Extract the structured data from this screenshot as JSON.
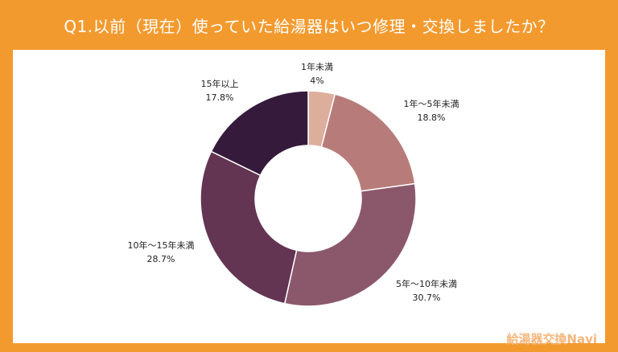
{
  "header": {
    "title": "Q1.以前（現在）使っていた給湯器はいつ修理・交換しましたか？"
  },
  "brand": {
    "text": "給湯器交換Navi"
  },
  "chart_data": {
    "type": "pie",
    "donut": true,
    "categories": [
      "1年未満",
      "1年〜5年未満",
      "5年〜10年未満",
      "10年〜15年未満",
      "15年以上"
    ],
    "values": [
      4,
      18.8,
      30.7,
      28.7,
      17.8
    ],
    "value_labels": [
      "4%",
      "18.8%",
      "30.7%",
      "28.7%",
      "17.8%"
    ],
    "colors": [
      "#DDAE9C",
      "#B77C79",
      "#8B586B",
      "#633552",
      "#351A3C"
    ],
    "unit": "%",
    "start": "12 o'clock, clockwise"
  }
}
